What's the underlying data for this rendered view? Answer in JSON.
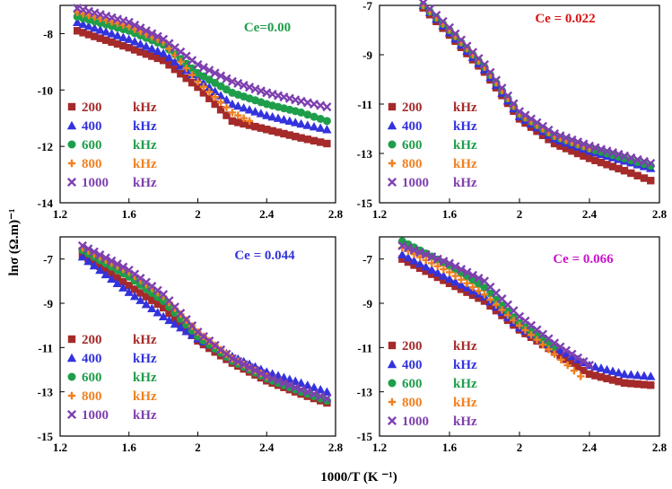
{
  "figure": {
    "ylabel": "lnσ (Ω.m)⁻¹",
    "xlabel": "1000/T (K ⁻¹)"
  },
  "legend_freqs": [
    "200",
    "400",
    "600",
    "800",
    "1000"
  ],
  "legend_unit": "kHz",
  "series_styles": [
    {
      "marker": "square",
      "color": "#A52A2A"
    },
    {
      "marker": "triangle",
      "color": "#3333DD"
    },
    {
      "marker": "circle",
      "color": "#1E9E4A"
    },
    {
      "marker": "plus",
      "color": "#F08020"
    },
    {
      "marker": "cross",
      "color": "#7E3FAF"
    }
  ],
  "chart_data": [
    {
      "type": "scatter",
      "title": "Ce=0.00",
      "title_color": "#1E9E4A",
      "xlim": [
        1.2,
        2.8
      ],
      "ylim": [
        -14,
        -7
      ],
      "xticks": [
        "1.2",
        "1.6",
        "2",
        "2.4",
        "2.8"
      ],
      "yticks": [
        "-8",
        "-10",
        "-12",
        "-14"
      ],
      "legend_position": "bottom-left",
      "series": [
        {
          "name": "200 kHz",
          "points": [
            [
              1.3,
              -7.9
            ],
            [
              1.6,
              -8.5
            ],
            [
              1.8,
              -8.95
            ],
            [
              2.0,
              -9.9
            ],
            [
              2.2,
              -11.1
            ],
            [
              2.4,
              -11.4
            ],
            [
              2.6,
              -11.7
            ],
            [
              2.75,
              -11.9
            ]
          ]
        },
        {
          "name": "400 kHz",
          "points": [
            [
              1.3,
              -7.6
            ],
            [
              1.6,
              -8.2
            ],
            [
              1.8,
              -8.7
            ],
            [
              2.0,
              -9.6
            ],
            [
              2.2,
              -10.5
            ],
            [
              2.4,
              -10.9
            ],
            [
              2.6,
              -11.2
            ],
            [
              2.75,
              -11.4
            ]
          ]
        },
        {
          "name": "600 kHz",
          "points": [
            [
              1.3,
              -7.4
            ],
            [
              1.6,
              -7.9
            ],
            [
              1.8,
              -8.4
            ],
            [
              2.0,
              -9.4
            ],
            [
              2.2,
              -10.1
            ],
            [
              2.4,
              -10.5
            ],
            [
              2.6,
              -10.8
            ],
            [
              2.75,
              -11.1
            ]
          ]
        },
        {
          "name": "800 kHz",
          "points": [
            [
              1.3,
              -7.25
            ],
            [
              1.6,
              -7.75
            ],
            [
              1.8,
              -8.3
            ],
            [
              2.0,
              -9.7
            ],
            [
              2.2,
              -10.8
            ],
            [
              2.3,
              -11.1
            ]
          ]
        },
        {
          "name": "1000 kHz",
          "points": [
            [
              1.3,
              -7.1
            ],
            [
              1.6,
              -7.6
            ],
            [
              1.8,
              -8.2
            ],
            [
              2.0,
              -9.1
            ],
            [
              2.2,
              -9.7
            ],
            [
              2.4,
              -10.1
            ],
            [
              2.6,
              -10.4
            ],
            [
              2.75,
              -10.6
            ]
          ]
        }
      ]
    },
    {
      "type": "scatter",
      "title": "Ce = 0.022",
      "title_color": "#DD1111",
      "xlim": [
        1.2,
        2.8
      ],
      "ylim": [
        -15,
        -7
      ],
      "xticks": [
        "1.2",
        "1.6",
        "2",
        "2.4",
        "2.8"
      ],
      "yticks": [
        "-7",
        "-9",
        "-11",
        "-13",
        "-15"
      ],
      "legend_position": "bottom-left",
      "series": [
        {
          "name": "200 kHz",
          "points": [
            [
              1.45,
              -7.1
            ],
            [
              1.6,
              -8.2
            ],
            [
              1.8,
              -9.7
            ],
            [
              2.0,
              -11.6
            ],
            [
              2.2,
              -12.6
            ],
            [
              2.4,
              -13.2
            ],
            [
              2.6,
              -13.7
            ],
            [
              2.75,
              -14.1
            ]
          ]
        },
        {
          "name": "400 kHz",
          "points": [
            [
              1.45,
              -7.0
            ],
            [
              1.6,
              -8.1
            ],
            [
              1.8,
              -9.6
            ],
            [
              2.0,
              -11.5
            ],
            [
              2.2,
              -12.4
            ],
            [
              2.4,
              -12.9
            ],
            [
              2.6,
              -13.3
            ],
            [
              2.75,
              -13.6
            ]
          ]
        },
        {
          "name": "600 kHz",
          "points": [
            [
              1.45,
              -7.0
            ],
            [
              1.6,
              -8.0
            ],
            [
              1.8,
              -9.5
            ],
            [
              2.0,
              -11.4
            ],
            [
              2.2,
              -12.3
            ],
            [
              2.4,
              -12.8
            ],
            [
              2.6,
              -13.2
            ],
            [
              2.75,
              -13.5
            ]
          ]
        },
        {
          "name": "800 kHz",
          "points": [
            [
              1.45,
              -7.0
            ],
            [
              1.6,
              -8.0
            ],
            [
              1.8,
              -9.5
            ],
            [
              2.0,
              -11.4
            ],
            [
              2.2,
              -12.3
            ],
            [
              2.4,
              -12.8
            ]
          ]
        },
        {
          "name": "1000 kHz",
          "points": [
            [
              1.45,
              -6.9
            ],
            [
              1.6,
              -7.9
            ],
            [
              1.8,
              -9.4
            ],
            [
              2.0,
              -11.3
            ],
            [
              2.2,
              -12.2
            ],
            [
              2.4,
              -12.7
            ],
            [
              2.6,
              -13.1
            ],
            [
              2.75,
              -13.4
            ]
          ]
        }
      ]
    },
    {
      "type": "scatter",
      "title": "Ce = 0.044",
      "title_color": "#3333DD",
      "xlim": [
        1.2,
        2.8
      ],
      "ylim": [
        -15,
        -6
      ],
      "xticks": [
        "1.2",
        "1.6",
        "2",
        "2.4",
        "2.8"
      ],
      "yticks": [
        "-7",
        "-9",
        "-11",
        "-13",
        "-15"
      ],
      "legend_position": "bottom-left",
      "series": [
        {
          "name": "200 kHz",
          "points": [
            [
              1.33,
              -6.8
            ],
            [
              1.6,
              -8.2
            ],
            [
              1.8,
              -9.2
            ],
            [
              2.0,
              -10.7
            ],
            [
              2.2,
              -11.7
            ],
            [
              2.4,
              -12.5
            ],
            [
              2.6,
              -13.1
            ],
            [
              2.75,
              -13.5
            ]
          ]
        },
        {
          "name": "400 kHz",
          "points": [
            [
              1.33,
              -6.9
            ],
            [
              1.6,
              -8.5
            ],
            [
              1.8,
              -9.6
            ],
            [
              2.0,
              -10.6
            ],
            [
              2.2,
              -11.4
            ],
            [
              2.4,
              -12.1
            ],
            [
              2.6,
              -12.6
            ],
            [
              2.75,
              -13.0
            ]
          ]
        },
        {
          "name": "600 kHz",
          "points": [
            [
              1.33,
              -6.6
            ],
            [
              1.6,
              -7.8
            ],
            [
              1.8,
              -8.9
            ],
            [
              2.0,
              -10.5
            ],
            [
              2.2,
              -11.6
            ],
            [
              2.4,
              -12.4
            ],
            [
              2.6,
              -13.0
            ],
            [
              2.75,
              -13.4
            ]
          ]
        },
        {
          "name": "800 kHz",
          "points": [
            [
              1.33,
              -6.5
            ],
            [
              1.6,
              -7.6
            ],
            [
              1.8,
              -8.7
            ],
            [
              2.0,
              -10.3
            ],
            [
              2.2,
              -11.5
            ],
            [
              2.4,
              -12.3
            ]
          ]
        },
        {
          "name": "1000 kHz",
          "points": [
            [
              1.33,
              -6.4
            ],
            [
              1.6,
              -7.5
            ],
            [
              1.8,
              -8.6
            ],
            [
              2.0,
              -10.3
            ],
            [
              2.2,
              -11.5
            ],
            [
              2.4,
              -12.3
            ],
            [
              2.6,
              -12.9
            ],
            [
              2.75,
              -13.3
            ]
          ]
        }
      ]
    },
    {
      "type": "scatter",
      "title": "Ce = 0.066",
      "title_color": "#CC11CC",
      "xlim": [
        1.2,
        2.8
      ],
      "ylim": [
        -15,
        -6
      ],
      "xticks": [
        "1.2",
        "1.6",
        "2",
        "2.4",
        "2.8"
      ],
      "yticks": [
        "-7",
        "-9",
        "-11",
        "-13",
        "-15"
      ],
      "legend_position": "bottom-left",
      "series": [
        {
          "name": "200 kHz",
          "points": [
            [
              1.33,
              -7.0
            ],
            [
              1.6,
              -8.1
            ],
            [
              1.8,
              -8.9
            ],
            [
              2.0,
              -10.2
            ],
            [
              2.2,
              -11.2
            ],
            [
              2.4,
              -12.2
            ],
            [
              2.6,
              -12.6
            ],
            [
              2.75,
              -12.7
            ]
          ]
        },
        {
          "name": "400 kHz",
          "points": [
            [
              1.33,
              -6.8
            ],
            [
              1.6,
              -7.9
            ],
            [
              1.8,
              -8.7
            ],
            [
              2.0,
              -10.1
            ],
            [
              2.2,
              -11.0
            ],
            [
              2.4,
              -11.8
            ],
            [
              2.6,
              -12.2
            ],
            [
              2.75,
              -12.3
            ]
          ]
        },
        {
          "name": "600 kHz",
          "points": [
            [
              1.33,
              -6.2
            ],
            [
              1.6,
              -7.3
            ],
            [
              1.8,
              -8.3
            ],
            [
              2.0,
              -9.9
            ],
            [
              2.2,
              -11.0
            ]
          ]
        },
        {
          "name": "800 kHz",
          "points": [
            [
              1.33,
              -6.5
            ],
            [
              1.6,
              -7.6
            ],
            [
              1.8,
              -8.6
            ],
            [
              2.0,
              -10.0
            ],
            [
              2.2,
              -11.3
            ],
            [
              2.35,
              -12.3
            ]
          ]
        },
        {
          "name": "1000 kHz",
          "points": [
            [
              1.33,
              -6.4
            ],
            [
              1.6,
              -7.2
            ],
            [
              1.8,
              -8.0
            ],
            [
              2.0,
              -9.6
            ],
            [
              2.2,
              -10.8
            ],
            [
              2.4,
              -11.8
            ]
          ]
        }
      ]
    }
  ]
}
